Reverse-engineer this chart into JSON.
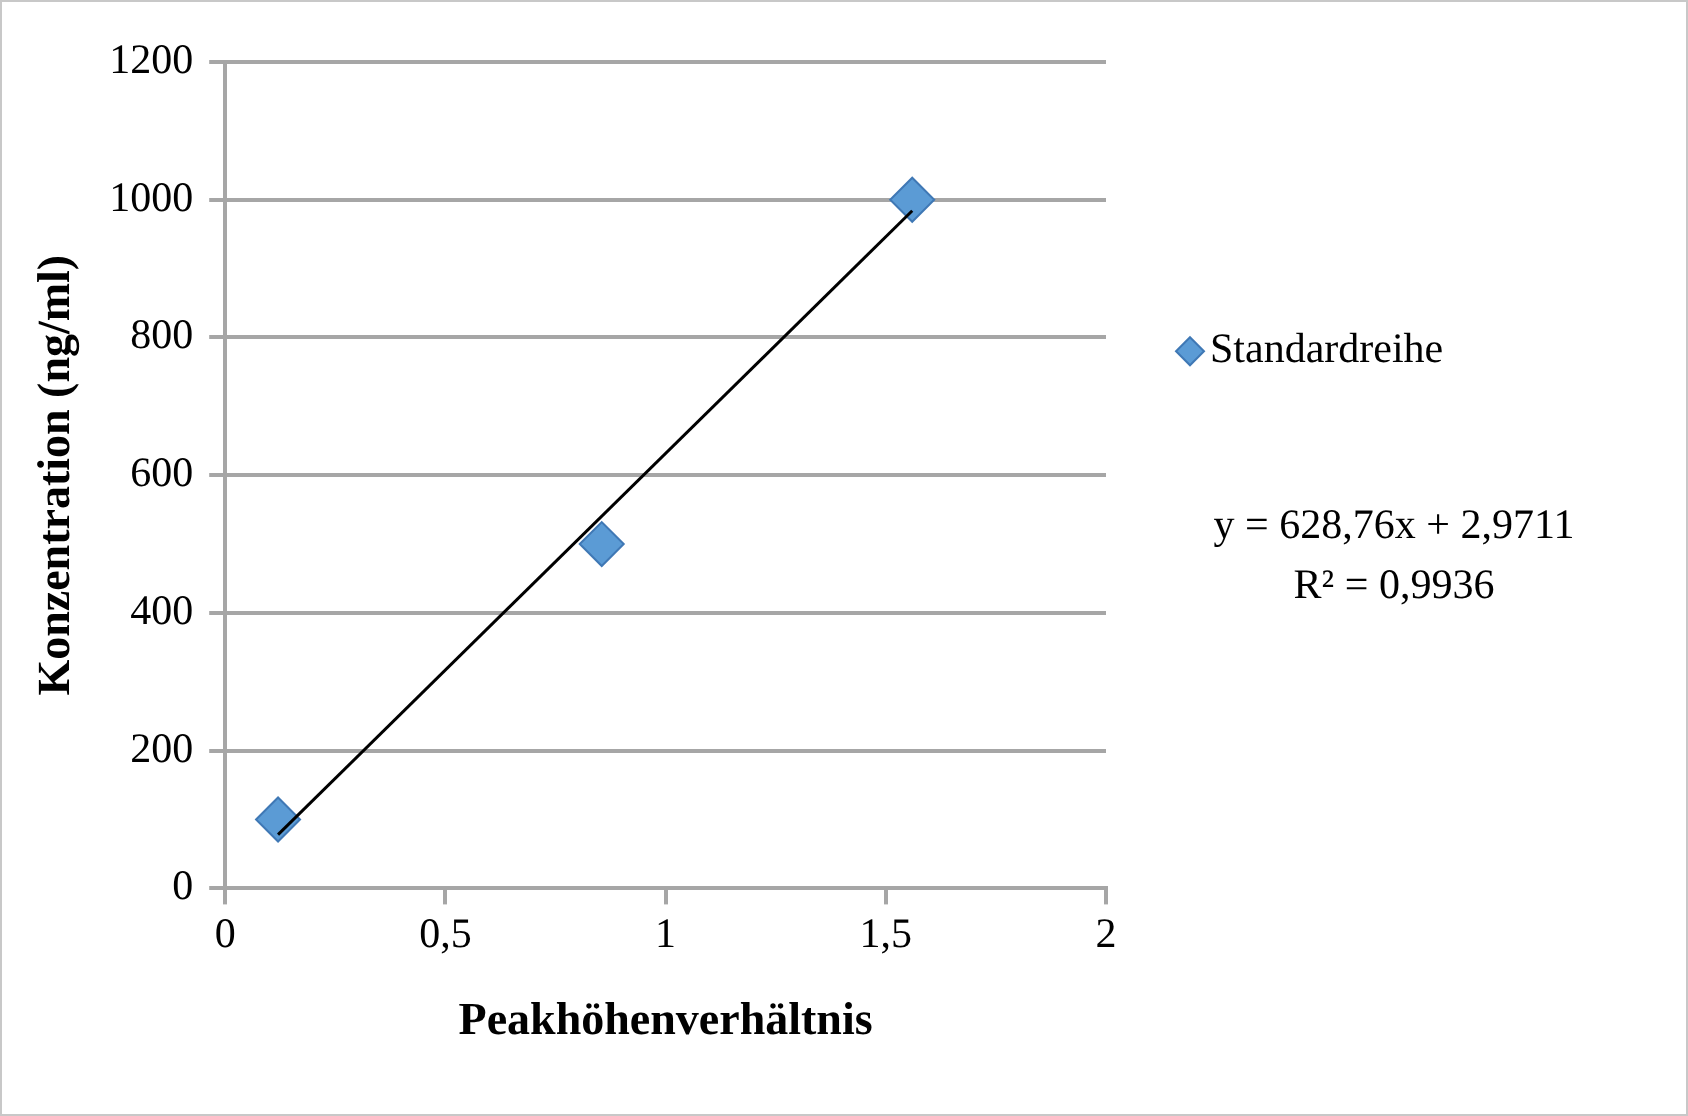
{
  "chart_data": {
    "type": "scatter",
    "xlabel": "Peakhöhenverhältnis",
    "ylabel": "Konzentration (ng/ml)",
    "x": [
      0.12,
      0.855,
      1.56
    ],
    "series": [
      {
        "name": "Standardreihe",
        "color": "#5b9bd5",
        "values": [
          100,
          500,
          1000
        ],
        "marker": "diamond"
      },
      {
        "type": "line",
        "color": "#000000",
        "x": [
          0.12,
          1.56
        ],
        "values": [
          78,
          984
        ],
        "marker": "none"
      }
    ],
    "xlim": [
      0,
      2
    ],
    "xticks": [
      0,
      {
        "value": 0.5,
        "label": "0,5"
      },
      1,
      {
        "value": 1.5,
        "label": "1,5"
      },
      2
    ],
    "ylim": [
      0,
      1200
    ],
    "yticks": [
      0,
      200,
      400,
      600,
      800,
      1000,
      1200
    ],
    "grid": "y",
    "legend": "right",
    "annotations": [
      "y = 628,76x + 2,9711",
      "R² = 0,9936"
    ]
  }
}
